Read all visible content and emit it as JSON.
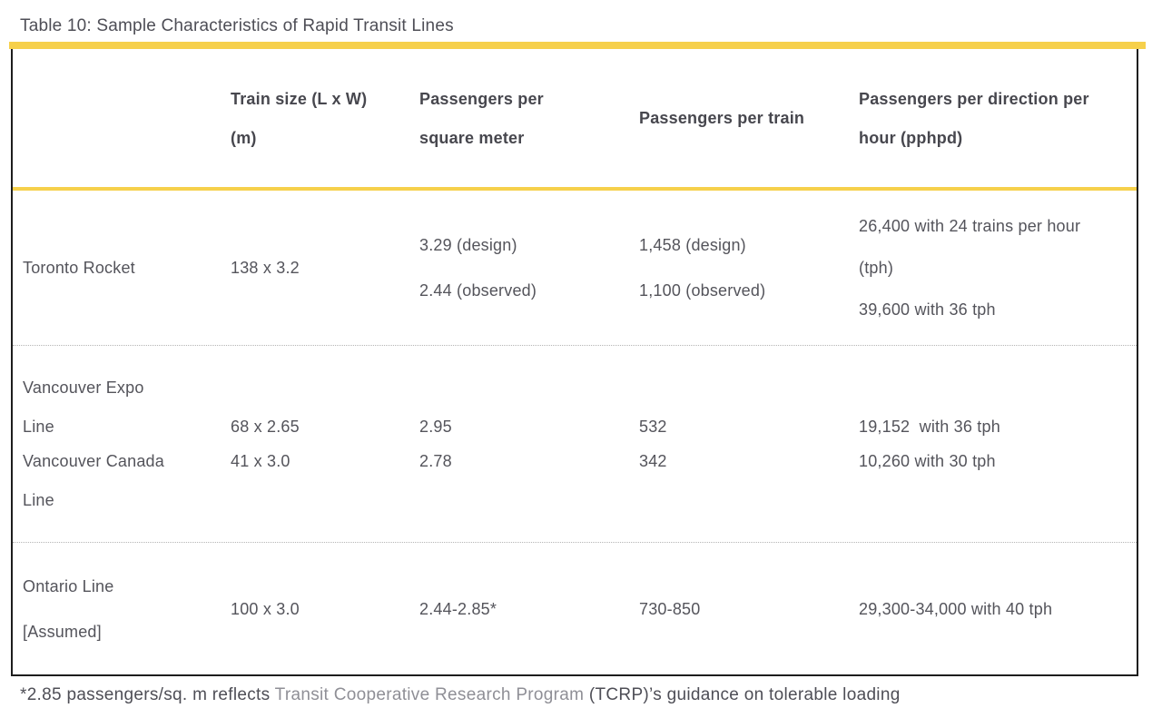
{
  "page": {
    "title": "Table 10: Sample Characteristics of Rapid Transit Lines"
  },
  "colors": {
    "accent_yellow": "#F6D04B",
    "text_dark": "#54545B",
    "header_text": "#47474E",
    "muted_text": "#8F8F96",
    "outer_border": "#1D1D1D",
    "row_divider": "#B5B5B5",
    "background": "#FFFFFF"
  },
  "header": {
    "train_size_lines": [
      "Train size (L x W)",
      "(m)"
    ],
    "psm_lines": [
      "Passengers per",
      "square meter"
    ],
    "ppt_lines": [
      "Passengers per train"
    ],
    "pphpd_lines": [
      "Passengers per direction per",
      "hour (pphpd)"
    ]
  },
  "rows": {
    "toronto": {
      "name": "Toronto Rocket",
      "train_size": "138 x 3.2",
      "psm": [
        "3.29 (design)",
        "2.44 (observed)"
      ],
      "ppt": [
        "1,458 (design)",
        "1,100 (observed)"
      ],
      "pphpd": [
        "26,400 with 24 trains per hour",
        "(tph)",
        "39,600 with 36 tph"
      ]
    },
    "vancouver_expo": {
      "name_lines": [
        "Vancouver Expo",
        "Line"
      ],
      "train_size": "68 x 2.65",
      "psm": "2.95",
      "ppt": "532",
      "pphpd": "19,152  with 36 tph"
    },
    "vancouver_canada": {
      "name_lines": [
        "Vancouver Canada",
        "Line"
      ],
      "train_size": "41 x 3.0",
      "psm": "2.78",
      "ppt": "342",
      "pphpd": "10,260 with 30 tph"
    },
    "ontario": {
      "name_lines": [
        "Ontario Line",
        "[Assumed]"
      ],
      "train_size": "100 x 3.0",
      "psm": "2.44-2.85*",
      "ppt": "730-850",
      "pphpd": "29,300-34,000 with 40 tph"
    }
  },
  "footnote": {
    "prefix": "*2.85 passengers/sq. m reflects ",
    "highlight": "Transit Cooperative Research Program",
    "suffix": " (TCRP)’s guidance on tolerable loading"
  }
}
